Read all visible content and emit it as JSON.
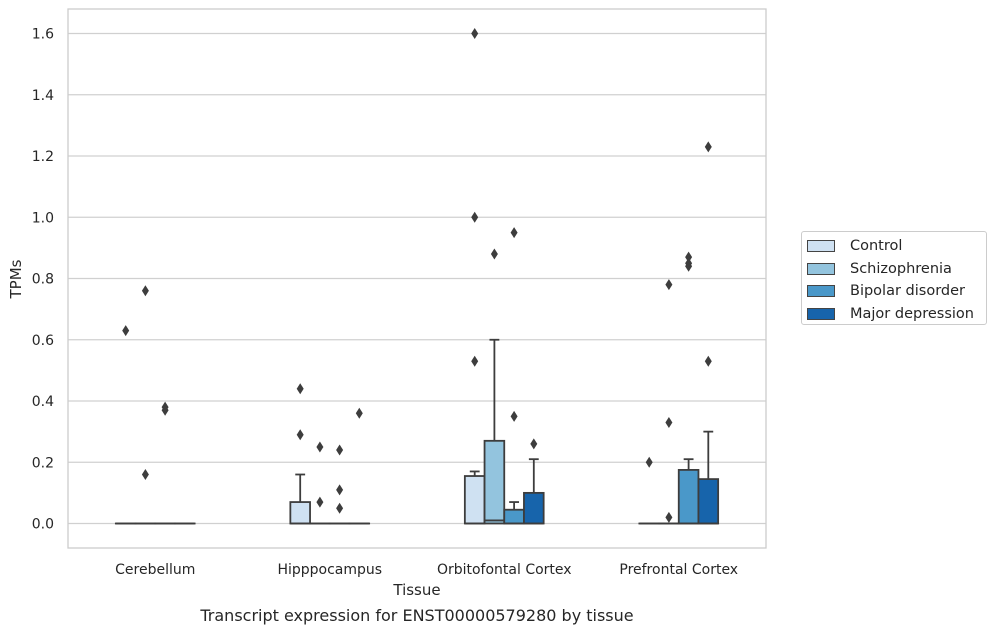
{
  "caption": "Transcript expression for ENST00000579280 by tissue",
  "colors": {
    "Control": "#cfe1f2",
    "Schizophrenia": "#93c4de",
    "Bipolar disorder": "#4a98c9",
    "Major depression": "#1764ab",
    "edge": "#3d3d3d",
    "grid": "#d0d0d0"
  },
  "legend": {
    "placement": "outside-right",
    "entries": [
      "Control",
      "Schizophrenia",
      "Bipolar disorder",
      "Major depression"
    ]
  },
  "chart_data": {
    "type": "box",
    "xlabel": "Tissue",
    "ylabel": "TPMs",
    "ylim": [
      -0.08,
      1.68
    ],
    "yticks": [
      "0.0",
      "0.2",
      "0.4",
      "0.6",
      "0.8",
      "1.0",
      "1.2",
      "1.4",
      "1.6"
    ],
    "grid": "horizontal",
    "categories": [
      "Cerebellum",
      "Hipppocampus",
      "Orbitofontal Cortex",
      "Prefrontal Cortex"
    ],
    "series": [
      {
        "name": "Control",
        "boxes": [
          {
            "q1": 0,
            "median": 0,
            "q3": 0,
            "whisker_low": 0,
            "whisker_high": 0,
            "outliers": [
              0.63
            ]
          },
          {
            "q1": 0,
            "median": 0,
            "q3": 0.07,
            "whisker_low": 0,
            "whisker_high": 0.16,
            "outliers": [
              0.29,
              0.44
            ]
          },
          {
            "q1": 0,
            "median": 0,
            "q3": 0.155,
            "whisker_low": 0,
            "whisker_high": 0.17,
            "outliers": [
              0.53,
              1.0,
              1.6
            ]
          },
          {
            "q1": 0,
            "median": 0,
            "q3": 0,
            "whisker_low": 0,
            "whisker_high": 0,
            "outliers": [
              0.2
            ]
          }
        ]
      },
      {
        "name": "Schizophrenia",
        "boxes": [
          {
            "q1": 0,
            "median": 0,
            "q3": 0,
            "whisker_low": 0,
            "whisker_high": 0,
            "outliers": [
              0.16,
              0.76
            ]
          },
          {
            "q1": 0,
            "median": 0,
            "q3": 0,
            "whisker_low": 0,
            "whisker_high": 0,
            "outliers": [
              0.07,
              0.25
            ]
          },
          {
            "q1": 0,
            "median": 0.01,
            "q3": 0.27,
            "whisker_low": 0,
            "whisker_high": 0.6,
            "outliers": [
              0.88
            ]
          },
          {
            "q1": 0,
            "median": 0,
            "q3": 0,
            "whisker_low": 0,
            "whisker_high": 0,
            "outliers": [
              0.02,
              0.33,
              0.78
            ]
          }
        ]
      },
      {
        "name": "Bipolar disorder",
        "boxes": [
          {
            "q1": 0,
            "median": 0,
            "q3": 0,
            "whisker_low": 0,
            "whisker_high": 0,
            "outliers": [
              0.37,
              0.38
            ]
          },
          {
            "q1": 0,
            "median": 0,
            "q3": 0,
            "whisker_low": 0,
            "whisker_high": 0,
            "outliers": [
              0.05,
              0.11,
              0.24
            ]
          },
          {
            "q1": 0,
            "median": 0,
            "q3": 0.045,
            "whisker_low": 0,
            "whisker_high": 0.07,
            "outliers": [
              0.35,
              0.95
            ]
          },
          {
            "q1": 0,
            "median": 0,
            "q3": 0.175,
            "whisker_low": 0,
            "whisker_high": 0.21,
            "outliers": [
              0.84,
              0.85,
              0.87
            ]
          }
        ]
      },
      {
        "name": "Major depression",
        "boxes": [
          {
            "q1": 0,
            "median": 0,
            "q3": 0,
            "whisker_low": 0,
            "whisker_high": 0,
            "outliers": []
          },
          {
            "q1": 0,
            "median": 0,
            "q3": 0,
            "whisker_low": 0,
            "whisker_high": 0,
            "outliers": [
              0.36
            ]
          },
          {
            "q1": 0,
            "median": 0,
            "q3": 0.1,
            "whisker_low": 0,
            "whisker_high": 0.21,
            "outliers": [
              0.26
            ]
          },
          {
            "q1": 0,
            "median": 0,
            "q3": 0.145,
            "whisker_low": 0,
            "whisker_high": 0.3,
            "outliers": [
              0.53,
              1.23
            ]
          }
        ]
      }
    ]
  }
}
